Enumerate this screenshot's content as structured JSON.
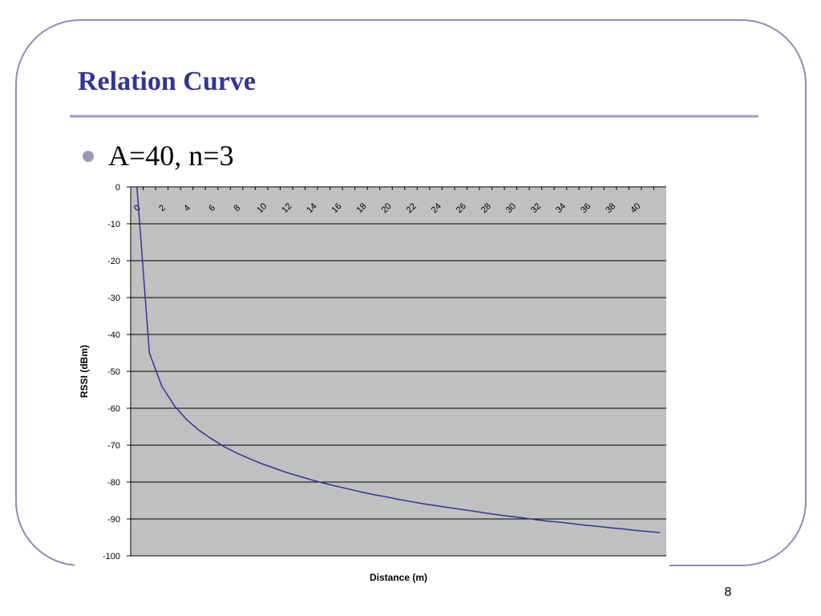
{
  "title": "Relation Curve",
  "bullet": "A=40, n=3",
  "page_number": 8,
  "chart_data": {
    "type": "line",
    "categories": [
      0,
      null,
      2,
      null,
      4,
      null,
      6,
      null,
      8,
      null,
      10,
      null,
      12,
      null,
      14,
      null,
      16,
      null,
      18,
      null,
      20,
      null,
      22,
      null,
      24,
      null,
      26,
      null,
      28,
      null,
      30,
      null,
      32,
      null,
      34,
      null,
      36,
      null,
      38,
      null,
      40,
      null,
      null
    ],
    "values": [
      0,
      -45,
      -54,
      -59.3,
      -63.1,
      -66,
      -68.3,
      -70.4,
      -72.1,
      -73.6,
      -75,
      -76.2,
      -77.4,
      -78.4,
      -79.4,
      -80.3,
      -81.1,
      -81.9,
      -82.7,
      -83.4,
      -84,
      -84.7,
      -85.3,
      -85.9,
      -86.4,
      -86.9,
      -87.4,
      -87.9,
      -88.4,
      -88.9,
      -89.3,
      -89.7,
      -90.2,
      -90.6,
      -90.9,
      -91.3,
      -91.7,
      -92,
      -92.4,
      -92.7,
      -93.1,
      -93.4,
      -93.7
    ],
    "color": "#333399",
    "ylim": [
      -100,
      0
    ],
    "yticks": [
      0,
      -10,
      -20,
      -30,
      -40,
      -50,
      -60,
      -70,
      -80,
      -90,
      -100
    ],
    "grid": true,
    "xlabel": "Distance (m)",
    "ylabel": "RSSI (dBm)"
  }
}
